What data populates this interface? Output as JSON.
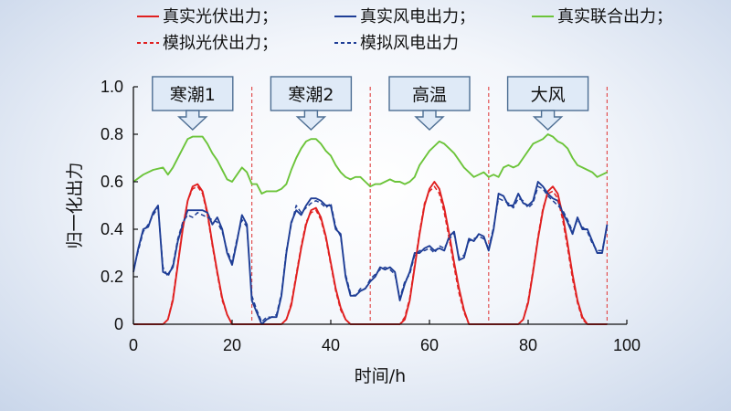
{
  "chart_data": {
    "type": "line",
    "xlabel": "时间/h",
    "ylabel": "归一化出力",
    "xlim": [
      0,
      100
    ],
    "ylim": [
      0,
      1.0
    ],
    "xticks": [
      0,
      20,
      40,
      60,
      80,
      100
    ],
    "yticks": [
      0,
      0.2,
      0.4,
      0.6,
      0.8,
      1.0
    ],
    "ytick_labels": [
      "0",
      "0.2",
      "0.4",
      "0.6",
      "0.8",
      "1.0"
    ],
    "legend": {
      "placement": "top",
      "entries": [
        {
          "label": "真实光伏出力；",
          "color": "#e02020",
          "dash": false
        },
        {
          "label": "真实风电出力；",
          "color": "#1f3e96",
          "dash": false
        },
        {
          "label": "真实联合出力；",
          "color": "#6cc43a",
          "dash": false
        },
        {
          "label": "模拟光伏出力；",
          "color": "#e02020",
          "dash": true
        },
        {
          "label": "模拟风电出力",
          "color": "#1f3e96",
          "dash": true
        }
      ]
    },
    "dividers": {
      "x": [
        24,
        48,
        72,
        96
      ],
      "color": "#e25050"
    },
    "callouts": [
      {
        "label": "寒潮1",
        "x": 12
      },
      {
        "label": "寒潮2",
        "x": 36
      },
      {
        "label": "高温",
        "x": 60
      },
      {
        "label": "大风",
        "x": 84
      }
    ],
    "series": [
      {
        "name": "真实联合出力",
        "color": "#6cc43a",
        "dash": false,
        "x": [
          0,
          2,
          4,
          6,
          7,
          8,
          9,
          10,
          11,
          12,
          13,
          14,
          15,
          16,
          17,
          18,
          19,
          20,
          21,
          22,
          23,
          24,
          25,
          26,
          27,
          28,
          29,
          30,
          31,
          32,
          33,
          34,
          35,
          36,
          37,
          38,
          39,
          40,
          41,
          42,
          43,
          44,
          45,
          46,
          47,
          48,
          49,
          50,
          51,
          52,
          53,
          54,
          55,
          56,
          57,
          58,
          59,
          60,
          61,
          62,
          63,
          64,
          65,
          66,
          67,
          68,
          69,
          70,
          71,
          72,
          73,
          74,
          75,
          76,
          77,
          78,
          79,
          80,
          81,
          82,
          83,
          84,
          85,
          86,
          87,
          88,
          89,
          90,
          91,
          92,
          93,
          94,
          95,
          96
        ],
        "y": [
          0.6,
          0.63,
          0.65,
          0.66,
          0.63,
          0.66,
          0.7,
          0.74,
          0.78,
          0.79,
          0.79,
          0.79,
          0.76,
          0.72,
          0.69,
          0.65,
          0.61,
          0.6,
          0.63,
          0.66,
          0.64,
          0.59,
          0.59,
          0.55,
          0.56,
          0.56,
          0.56,
          0.57,
          0.59,
          0.65,
          0.7,
          0.74,
          0.77,
          0.78,
          0.78,
          0.76,
          0.73,
          0.71,
          0.67,
          0.64,
          0.62,
          0.61,
          0.62,
          0.62,
          0.6,
          0.58,
          0.59,
          0.59,
          0.6,
          0.61,
          0.6,
          0.6,
          0.59,
          0.6,
          0.62,
          0.67,
          0.7,
          0.73,
          0.75,
          0.77,
          0.76,
          0.74,
          0.72,
          0.69,
          0.66,
          0.64,
          0.62,
          0.63,
          0.64,
          0.62,
          0.63,
          0.62,
          0.66,
          0.67,
          0.66,
          0.67,
          0.7,
          0.73,
          0.76,
          0.77,
          0.78,
          0.8,
          0.79,
          0.77,
          0.76,
          0.74,
          0.7,
          0.67,
          0.66,
          0.65,
          0.64,
          0.62,
          0.63,
          0.64
        ]
      },
      {
        "name": "真实光伏出力",
        "color": "#e02020",
        "dash": false,
        "x": [
          0,
          6,
          7,
          8,
          9,
          10,
          11,
          12,
          13,
          14,
          15,
          16,
          17,
          18,
          19,
          20,
          24,
          30,
          31,
          32,
          33,
          34,
          35,
          36,
          37,
          38,
          39,
          40,
          41,
          42,
          43,
          44,
          48,
          54,
          55,
          56,
          57,
          58,
          59,
          60,
          61,
          62,
          63,
          64,
          65,
          66,
          67,
          68,
          72,
          78,
          79,
          80,
          81,
          82,
          83,
          84,
          85,
          86,
          87,
          88,
          89,
          90,
          91,
          92,
          96
        ],
        "y": [
          0,
          0,
          0.02,
          0.1,
          0.25,
          0.4,
          0.52,
          0.58,
          0.59,
          0.56,
          0.47,
          0.34,
          0.22,
          0.11,
          0.04,
          0,
          0,
          0,
          0.02,
          0.08,
          0.2,
          0.32,
          0.42,
          0.48,
          0.49,
          0.45,
          0.37,
          0.26,
          0.15,
          0.07,
          0.02,
          0,
          0,
          0,
          0.02,
          0.1,
          0.24,
          0.38,
          0.5,
          0.57,
          0.6,
          0.57,
          0.49,
          0.38,
          0.26,
          0.15,
          0.06,
          0,
          0,
          0,
          0.02,
          0.09,
          0.22,
          0.36,
          0.48,
          0.56,
          0.58,
          0.55,
          0.46,
          0.34,
          0.21,
          0.1,
          0.03,
          0,
          0
        ]
      },
      {
        "name": "真实风电出力",
        "color": "#1f3e96",
        "dash": false,
        "x": [
          0,
          1,
          2,
          3,
          4,
          5,
          6,
          7,
          8,
          9,
          10,
          11,
          12,
          13,
          14,
          15,
          16,
          17,
          18,
          19,
          20,
          21,
          22,
          23,
          24,
          25,
          26,
          27,
          28,
          29,
          30,
          31,
          32,
          33,
          34,
          35,
          36,
          37,
          38,
          39,
          40,
          41,
          42,
          43,
          44,
          45,
          46,
          47,
          48,
          49,
          50,
          51,
          52,
          53,
          54,
          55,
          56,
          57,
          58,
          59,
          60,
          61,
          62,
          63,
          64,
          65,
          66,
          67,
          68,
          69,
          70,
          71,
          72,
          73,
          74,
          75,
          76,
          77,
          78,
          79,
          80,
          81,
          82,
          83,
          84,
          85,
          86,
          87,
          88,
          89,
          90,
          91,
          92,
          93,
          94,
          95,
          96
        ],
        "y": [
          0.22,
          0.32,
          0.4,
          0.41,
          0.47,
          0.5,
          0.22,
          0.21,
          0.24,
          0.35,
          0.42,
          0.48,
          0.48,
          0.48,
          0.48,
          0.47,
          0.42,
          0.45,
          0.4,
          0.3,
          0.25,
          0.35,
          0.46,
          0.42,
          0.1,
          0.05,
          0,
          0.02,
          0.03,
          0.03,
          0.12,
          0.3,
          0.43,
          0.48,
          0.46,
          0.5,
          0.53,
          0.53,
          0.52,
          0.5,
          0.5,
          0.4,
          0.38,
          0.2,
          0.12,
          0.12,
          0.14,
          0.15,
          0.18,
          0.2,
          0.24,
          0.23,
          0.24,
          0.22,
          0.1,
          0.17,
          0.22,
          0.3,
          0.3,
          0.32,
          0.33,
          0.31,
          0.32,
          0.31,
          0.37,
          0.39,
          0.27,
          0.28,
          0.36,
          0.35,
          0.38,
          0.37,
          0.31,
          0.4,
          0.55,
          0.54,
          0.5,
          0.5,
          0.55,
          0.51,
          0.5,
          0.52,
          0.6,
          0.58,
          0.55,
          0.53,
          0.52,
          0.47,
          0.43,
          0.38,
          0.45,
          0.4,
          0.4,
          0.35,
          0.3,
          0.3,
          0.42
        ]
      },
      {
        "name": "模拟光伏出力",
        "color": "#e02020",
        "dash": true,
        "x": [
          0,
          6,
          7,
          8,
          9,
          10,
          11,
          12,
          13,
          14,
          15,
          16,
          17,
          18,
          19,
          20,
          24,
          30,
          31,
          32,
          33,
          34,
          35,
          36,
          37,
          38,
          39,
          40,
          41,
          42,
          43,
          44,
          48,
          54,
          55,
          56,
          57,
          58,
          59,
          60,
          61,
          62,
          63,
          64,
          65,
          66,
          67,
          68,
          72,
          78,
          79,
          80,
          81,
          82,
          83,
          84,
          85,
          86,
          87,
          88,
          89,
          90,
          91,
          92,
          96
        ],
        "y": [
          0,
          0,
          0.02,
          0.11,
          0.26,
          0.41,
          0.52,
          0.57,
          0.58,
          0.55,
          0.46,
          0.33,
          0.21,
          0.1,
          0.04,
          0,
          0,
          0,
          0.02,
          0.09,
          0.21,
          0.33,
          0.43,
          0.47,
          0.48,
          0.44,
          0.36,
          0.25,
          0.14,
          0.06,
          0.02,
          0,
          0,
          0,
          0.03,
          0.11,
          0.25,
          0.39,
          0.51,
          0.56,
          0.58,
          0.55,
          0.47,
          0.36,
          0.24,
          0.13,
          0.05,
          0,
          0,
          0,
          0.02,
          0.1,
          0.23,
          0.37,
          0.49,
          0.55,
          0.56,
          0.53,
          0.44,
          0.32,
          0.19,
          0.09,
          0.02,
          0,
          0
        ]
      },
      {
        "name": "模拟风电出力",
        "color": "#1f3e96",
        "dash": true,
        "x": [
          0,
          1,
          2,
          3,
          4,
          5,
          6,
          7,
          8,
          9,
          10,
          11,
          12,
          13,
          14,
          15,
          16,
          17,
          18,
          19,
          20,
          21,
          22,
          23,
          24,
          25,
          26,
          27,
          28,
          29,
          30,
          31,
          32,
          33,
          34,
          35,
          36,
          37,
          38,
          39,
          40,
          41,
          42,
          43,
          44,
          45,
          46,
          47,
          48,
          49,
          50,
          51,
          52,
          53,
          54,
          55,
          56,
          57,
          58,
          59,
          60,
          61,
          62,
          63,
          64,
          65,
          66,
          67,
          68,
          69,
          70,
          71,
          72,
          73,
          74,
          75,
          76,
          77,
          78,
          79,
          80,
          81,
          82,
          83,
          84,
          85,
          86,
          87,
          88,
          89,
          90,
          91,
          92,
          93,
          94,
          95,
          96
        ],
        "y": [
          0.23,
          0.31,
          0.39,
          0.42,
          0.46,
          0.49,
          0.24,
          0.2,
          0.25,
          0.36,
          0.43,
          0.46,
          0.45,
          0.47,
          0.46,
          0.45,
          0.44,
          0.43,
          0.39,
          0.31,
          0.26,
          0.36,
          0.44,
          0.41,
          0.12,
          0.06,
          0.01,
          0.03,
          0.03,
          0.04,
          0.13,
          0.31,
          0.42,
          0.5,
          0.47,
          0.49,
          0.51,
          0.52,
          0.51,
          0.49,
          0.51,
          0.41,
          0.37,
          0.21,
          0.13,
          0.12,
          0.15,
          0.15,
          0.19,
          0.21,
          0.23,
          0.24,
          0.23,
          0.21,
          0.11,
          0.18,
          0.21,
          0.29,
          0.31,
          0.31,
          0.32,
          0.3,
          0.33,
          0.32,
          0.36,
          0.38,
          0.28,
          0.29,
          0.35,
          0.36,
          0.37,
          0.36,
          0.32,
          0.41,
          0.53,
          0.52,
          0.51,
          0.49,
          0.53,
          0.52,
          0.49,
          0.51,
          0.58,
          0.57,
          0.54,
          0.52,
          0.5,
          0.48,
          0.44,
          0.39,
          0.44,
          0.41,
          0.39,
          0.34,
          0.31,
          0.31,
          0.41
        ]
      }
    ]
  }
}
